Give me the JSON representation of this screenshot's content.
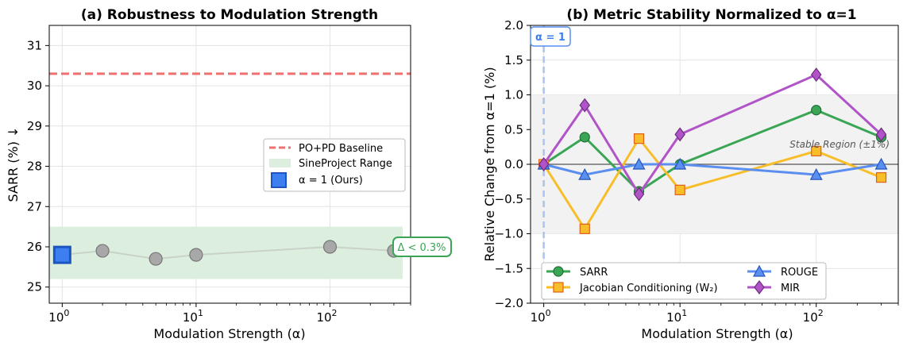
{
  "chart_data": [
    {
      "type": "scatter",
      "title": "(a) Robustness to Modulation Strength",
      "xlabel": "Modulation Strength (α)",
      "ylabel": "SARR (%) ↓",
      "xscale": "log",
      "xlim": [
        0.8,
        400
      ],
      "ylim": [
        24.6,
        31.5
      ],
      "yticks": [
        "25",
        "26",
        "27",
        "28",
        "29",
        "30",
        "31"
      ],
      "xticks": [
        {
          "base": "10",
          "exp": "0",
          "value": 1
        },
        {
          "base": "10",
          "exp": "1",
          "value": 10
        },
        {
          "base": "10",
          "exp": "2",
          "value": 100
        }
      ],
      "grid": true,
      "baseline": {
        "name": "PO+PD Baseline",
        "value": 30.3,
        "color": "#f07070"
      },
      "range": {
        "name": "SineProject Range",
        "low": 25.2,
        "high": 26.5,
        "color": "#dcefdf"
      },
      "series": [
        {
          "name": "SineProject",
          "x": [
            2,
            5,
            10,
            100,
            300
          ],
          "y": [
            25.9,
            25.7,
            25.8,
            26.0,
            25.9
          ],
          "color": "#a8a8a8"
        }
      ],
      "highlight": {
        "name": "α = 1 (Ours)",
        "x": 1,
        "y": 25.8,
        "color": "#3d7ff0"
      },
      "annotation": "Δ < 0.3%",
      "legend_position": "center-right"
    },
    {
      "type": "line",
      "title": "(b) Metric Stability Normalized to α=1",
      "xlabel": "Modulation Strength (α)",
      "ylabel": "Relative Change from α=1 (%)",
      "xscale": "log",
      "xlim": [
        0.8,
        400
      ],
      "ylim": [
        -2.0,
        2.0
      ],
      "yticks": [
        "−2.0",
        "−1.5",
        "−1.0",
        "−0.5",
        "0.0",
        "0.5",
        "1.0",
        "1.5",
        "2.0"
      ],
      "xticks": [
        {
          "base": "10",
          "exp": "0",
          "value": 1
        },
        {
          "base": "10",
          "exp": "1",
          "value": 10
        },
        {
          "base": "10",
          "exp": "2",
          "value": 100
        }
      ],
      "grid": true,
      "x": [
        1,
        2,
        5,
        10,
        100,
        300
      ],
      "stable_band": {
        "low": -1.0,
        "high": 1.0,
        "label": "Stable Region (±1%)"
      },
      "reference_label": "α = 1",
      "series": [
        {
          "name": "SARR",
          "values": [
            0.0,
            0.39,
            -0.39,
            0.0,
            0.78,
            0.39
          ],
          "color": "#3aa655",
          "marker": "circle"
        },
        {
          "name": "Jacobian Conditioning (W₂)",
          "values": [
            0.0,
            -0.93,
            0.37,
            -0.37,
            0.19,
            -0.19
          ],
          "color": "#f7be2a",
          "marker": "square"
        },
        {
          "name": "ROUGE",
          "values": [
            0.0,
            -0.15,
            0.0,
            0.0,
            -0.15,
            0.0
          ],
          "color": "#5a8ef0",
          "marker": "triangle"
        },
        {
          "name": "MIR",
          "values": [
            0.0,
            0.85,
            -0.43,
            0.43,
            1.29,
            0.43
          ],
          "color": "#b054c8",
          "marker": "diamond"
        }
      ],
      "legend_position": "lower"
    }
  ]
}
